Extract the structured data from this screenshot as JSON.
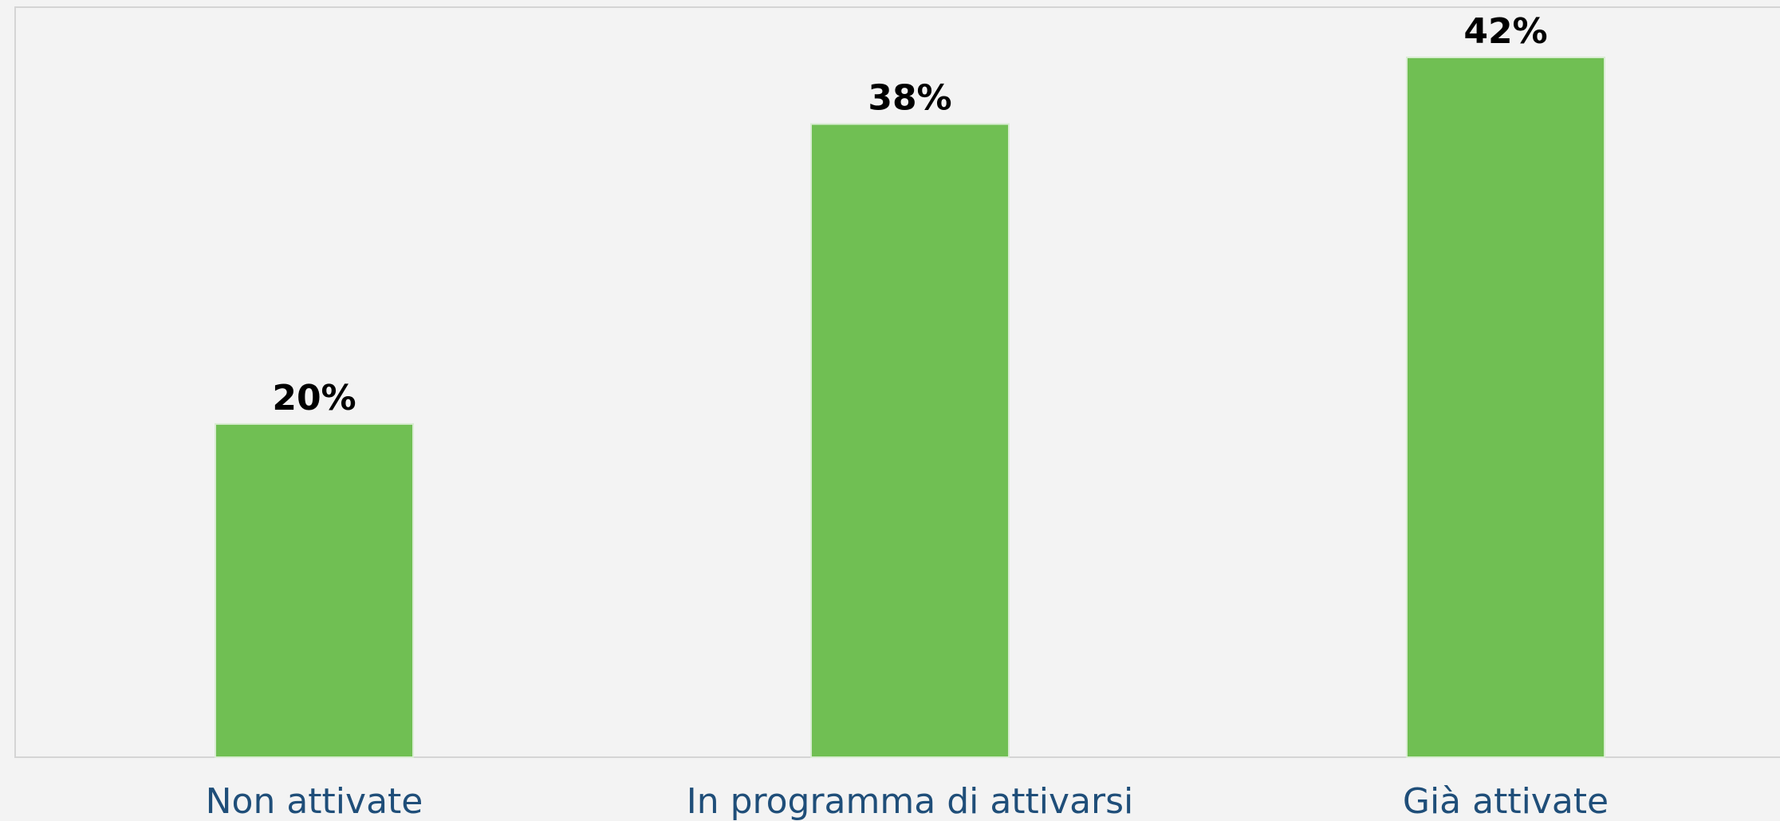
{
  "chart_data": {
    "type": "bar",
    "categories": [
      "Non attivate",
      "In programma di attivarsi",
      "Già attivate"
    ],
    "values": [
      20,
      38,
      42
    ],
    "value_labels": [
      "20%",
      "38%",
      "42%"
    ],
    "ylim": [
      0,
      45
    ],
    "grid": false,
    "legend": "none",
    "colors": {
      "bar": "#70bf53",
      "bar_border": "#d9ecd2",
      "background": "#f3f3f3",
      "plot_border": "#d4d4d4",
      "tick_label": "#1f4e79",
      "value_label": "#000000"
    }
  }
}
